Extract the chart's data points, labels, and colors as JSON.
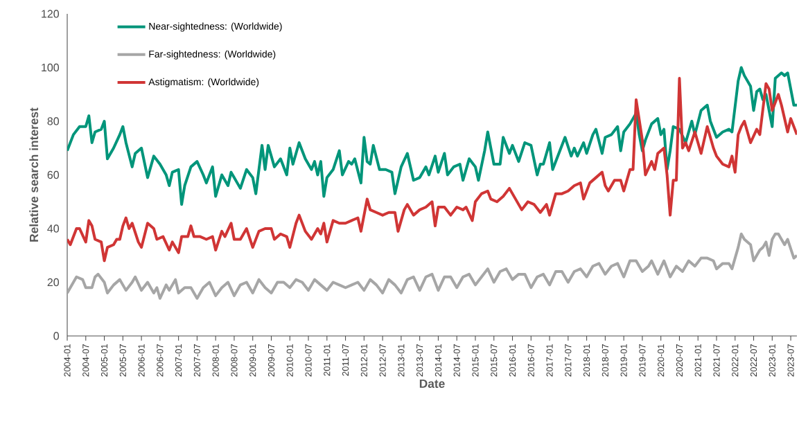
{
  "chart_data": {
    "type": "line",
    "xlabel": "Date",
    "ylabel": "Relative search interest",
    "xlim": [
      "2004-01",
      "2023-09"
    ],
    "ylim": [
      0,
      120
    ],
    "yticks": [
      0,
      20,
      40,
      60,
      80,
      100,
      120
    ],
    "xticks": [
      "2004-01",
      "2004-07",
      "2005-01",
      "2005-07",
      "2006-01",
      "2006-07",
      "2007-01",
      "2007-07",
      "2008-01",
      "2008-07",
      "2009-01",
      "2009-07",
      "2010-01",
      "2010-07",
      "2011-01",
      "2011-07",
      "2012-01",
      "2012-07",
      "2013-01",
      "2013-07",
      "2014-01",
      "2014-07",
      "2015-01",
      "2015-07",
      "2016-01",
      "2016-07",
      "2017-01",
      "2017-07",
      "2018-01",
      "2018-07",
      "2019-01",
      "2019-07",
      "2020-01",
      "2020-07",
      "2021-01",
      "2021-07",
      "2022-01",
      "2022-07",
      "2023-01",
      "2023-07"
    ],
    "grid": false,
    "legend": "top left",
    "marker": "none",
    "line_style": "solid",
    "series": [
      {
        "name": "Near-sightedness: (Worldwide)",
        "color": "#00957a",
        "x": [
          "2004-01",
          "2004-03",
          "2004-05",
          "2004-07",
          "2004-08",
          "2004-09",
          "2004-10",
          "2004-12",
          "2005-01",
          "2005-02",
          "2005-04",
          "2005-06",
          "2005-07",
          "2005-08",
          "2005-10",
          "2005-11",
          "2006-01",
          "2006-03",
          "2006-05",
          "2006-07",
          "2006-09",
          "2006-10",
          "2006-11",
          "2007-01",
          "2007-02",
          "2007-03",
          "2007-05",
          "2007-07",
          "2007-09",
          "2007-10",
          "2007-12",
          "2008-01",
          "2008-03",
          "2008-05",
          "2008-06",
          "2008-08",
          "2008-09",
          "2008-11",
          "2009-01",
          "2009-02",
          "2009-04",
          "2009-05",
          "2009-06",
          "2009-08",
          "2009-10",
          "2009-12",
          "2010-01",
          "2010-02",
          "2010-04",
          "2010-06",
          "2010-08",
          "2010-09",
          "2010-10",
          "2010-11",
          "2010-12",
          "2011-01",
          "2011-03",
          "2011-05",
          "2011-06",
          "2011-08",
          "2011-09",
          "2011-10",
          "2011-12",
          "2012-01",
          "2012-02",
          "2012-03",
          "2012-04",
          "2012-06",
          "2012-08",
          "2012-10",
          "2012-11",
          "2013-01",
          "2013-03",
          "2013-05",
          "2013-07",
          "2013-09",
          "2013-10",
          "2013-12",
          "2014-01",
          "2014-03",
          "2014-04",
          "2014-06",
          "2014-08",
          "2014-09",
          "2014-11",
          "2015-01",
          "2015-02",
          "2015-04",
          "2015-05",
          "2015-06",
          "2015-07",
          "2015-09",
          "2015-10",
          "2015-12",
          "2016-01",
          "2016-03",
          "2016-05",
          "2016-07",
          "2016-09",
          "2016-10",
          "2016-11",
          "2017-01",
          "2017-02",
          "2017-04",
          "2017-06",
          "2017-08",
          "2017-09",
          "2017-10",
          "2017-12",
          "2018-01",
          "2018-03",
          "2018-04",
          "2018-06",
          "2018-07",
          "2018-09",
          "2018-11",
          "2018-12",
          "2019-01",
          "2019-03",
          "2019-05",
          "2019-06",
          "2019-07",
          "2019-08",
          "2019-10",
          "2019-12",
          "2020-01",
          "2020-02",
          "2020-03",
          "2020-04",
          "2020-05",
          "2020-07",
          "2020-09",
          "2020-11",
          "2020-12",
          "2021-02",
          "2021-04",
          "2021-05",
          "2021-07",
          "2021-09",
          "2021-11",
          "2021-12",
          "2022-02",
          "2022-03",
          "2022-04",
          "2022-06",
          "2022-07",
          "2022-08",
          "2022-09",
          "2022-10",
          "2022-11",
          "2023-01",
          "2023-02",
          "2023-04",
          "2023-05",
          "2023-06",
          "2023-08",
          "2023-09"
        ],
        "values": [
          69,
          75,
          78,
          78,
          82,
          72,
          76,
          77,
          80,
          66,
          70,
          75,
          78,
          72,
          63,
          68,
          70,
          59,
          67,
          64,
          60,
          56,
          61,
          62,
          49,
          56,
          63,
          65,
          60,
          57,
          63,
          52,
          60,
          56,
          61,
          57,
          55,
          62,
          59,
          53,
          71,
          62,
          71,
          63,
          66,
          60,
          70,
          64,
          72,
          66,
          62,
          65,
          60,
          65,
          52,
          59,
          62,
          69,
          60,
          65,
          64,
          66,
          57,
          74,
          65,
          64,
          71,
          62,
          62,
          61,
          53,
          63,
          68,
          58,
          59,
          63,
          60,
          67,
          61,
          68,
          60,
          63,
          64,
          58,
          66,
          63,
          58,
          69,
          76,
          70,
          64,
          64,
          74,
          68,
          71,
          65,
          72,
          71,
          60,
          64,
          64,
          72,
          62,
          68,
          74,
          67,
          70,
          67,
          72,
          68,
          75,
          77,
          68,
          74,
          75,
          78,
          69,
          76,
          79,
          83,
          75,
          69,
          73,
          79,
          81,
          75,
          77,
          62,
          69,
          78,
          77,
          72,
          80,
          75,
          84,
          86,
          80,
          74,
          76,
          77,
          76,
          95,
          100,
          97,
          93,
          84,
          91,
          92,
          88,
          90,
          78,
          96,
          98,
          97,
          98,
          86,
          86
        ]
      },
      {
        "name": "Far-sightedness: (Worldwide)",
        "color": "#a6a6a6",
        "x": [
          "2004-01",
          "2004-03",
          "2004-04",
          "2004-06",
          "2004-07",
          "2004-09",
          "2004-10",
          "2004-11",
          "2005-01",
          "2005-02",
          "2005-04",
          "2005-06",
          "2005-08",
          "2005-10",
          "2005-11",
          "2006-01",
          "2006-03",
          "2006-05",
          "2006-06",
          "2006-07",
          "2006-09",
          "2006-10",
          "2006-12",
          "2007-01",
          "2007-03",
          "2007-05",
          "2007-07",
          "2007-09",
          "2007-11",
          "2008-01",
          "2008-03",
          "2008-05",
          "2008-07",
          "2008-09",
          "2008-11",
          "2009-01",
          "2009-03",
          "2009-05",
          "2009-07",
          "2009-09",
          "2009-11",
          "2010-01",
          "2010-03",
          "2010-05",
          "2010-07",
          "2010-09",
          "2010-11",
          "2011-01",
          "2011-03",
          "2011-05",
          "2011-07",
          "2011-09",
          "2011-11",
          "2012-01",
          "2012-03",
          "2012-05",
          "2012-07",
          "2012-09",
          "2012-11",
          "2013-01",
          "2013-03",
          "2013-05",
          "2013-07",
          "2013-09",
          "2013-11",
          "2014-01",
          "2014-03",
          "2014-05",
          "2014-07",
          "2014-09",
          "2014-11",
          "2015-01",
          "2015-03",
          "2015-05",
          "2015-07",
          "2015-09",
          "2015-11",
          "2016-01",
          "2016-03",
          "2016-05",
          "2016-07",
          "2016-09",
          "2016-11",
          "2017-01",
          "2017-03",
          "2017-05",
          "2017-07",
          "2017-09",
          "2017-11",
          "2018-01",
          "2018-03",
          "2018-05",
          "2018-07",
          "2018-09",
          "2018-11",
          "2019-01",
          "2019-03",
          "2019-05",
          "2019-07",
          "2019-09",
          "2019-10",
          "2019-12",
          "2020-02",
          "2020-04",
          "2020-06",
          "2020-08",
          "2020-10",
          "2020-12",
          "2021-02",
          "2021-04",
          "2021-06",
          "2021-07",
          "2021-09",
          "2021-11",
          "2021-12",
          "2022-02",
          "2022-03",
          "2022-04",
          "2022-06",
          "2022-07",
          "2022-09",
          "2022-10",
          "2022-11",
          "2022-12",
          "2023-01",
          "2023-02",
          "2023-03",
          "2023-05",
          "2023-06",
          "2023-08",
          "2023-09"
        ],
        "values": [
          16,
          20,
          22,
          21,
          18,
          18,
          22,
          23,
          20,
          16,
          19,
          21,
          17,
          20,
          22,
          17,
          20,
          16,
          18,
          14,
          19,
          17,
          21,
          16,
          18,
          18,
          14,
          18,
          20,
          15,
          18,
          20,
          15,
          19,
          20,
          16,
          21,
          18,
          16,
          20,
          20,
          18,
          21,
          20,
          17,
          21,
          19,
          17,
          20,
          19,
          18,
          19,
          20,
          17,
          21,
          19,
          16,
          21,
          19,
          16,
          21,
          22,
          17,
          22,
          23,
          17,
          22,
          22,
          18,
          22,
          23,
          19,
          22,
          25,
          20,
          24,
          25,
          21,
          23,
          23,
          18,
          22,
          23,
          19,
          24,
          24,
          20,
          24,
          25,
          22,
          26,
          27,
          23,
          26,
          27,
          22,
          28,
          28,
          24,
          26,
          28,
          23,
          28,
          22,
          26,
          24,
          28,
          26,
          29,
          29,
          28,
          25,
          27,
          27,
          25,
          33,
          38,
          36,
          34,
          28,
          32,
          33,
          35,
          30,
          36,
          38,
          38,
          34,
          36,
          29,
          30
        ]
      },
      {
        "name": "Astigmatism: (Worldwide)",
        "color": "#d03535",
        "x": [
          "2004-01",
          "2004-02",
          "2004-04",
          "2004-05",
          "2004-07",
          "2004-08",
          "2004-09",
          "2004-10",
          "2004-12",
          "2005-01",
          "2005-02",
          "2005-04",
          "2005-05",
          "2005-06",
          "2005-07",
          "2005-08",
          "2005-09",
          "2005-10",
          "2005-12",
          "2006-01",
          "2006-03",
          "2006-05",
          "2006-06",
          "2006-08",
          "2006-10",
          "2006-11",
          "2007-01",
          "2007-02",
          "2007-04",
          "2007-05",
          "2007-06",
          "2007-08",
          "2007-10",
          "2007-12",
          "2008-01",
          "2008-03",
          "2008-04",
          "2008-06",
          "2008-07",
          "2008-09",
          "2008-11",
          "2009-01",
          "2009-03",
          "2009-05",
          "2009-07",
          "2009-08",
          "2009-10",
          "2009-12",
          "2010-01",
          "2010-03",
          "2010-04",
          "2010-06",
          "2010-08",
          "2010-10",
          "2010-11",
          "2010-12",
          "2011-01",
          "2011-03",
          "2011-05",
          "2011-07",
          "2011-09",
          "2011-11",
          "2011-12",
          "2012-02",
          "2012-03",
          "2012-05",
          "2012-07",
          "2012-09",
          "2012-11",
          "2012-12",
          "2013-02",
          "2013-03",
          "2013-05",
          "2013-07",
          "2013-09",
          "2013-11",
          "2013-12",
          "2014-01",
          "2014-03",
          "2014-05",
          "2014-07",
          "2014-09",
          "2014-10",
          "2014-12",
          "2015-01",
          "2015-03",
          "2015-05",
          "2015-06",
          "2015-08",
          "2015-10",
          "2015-12",
          "2016-02",
          "2016-04",
          "2016-06",
          "2016-08",
          "2016-10",
          "2016-12",
          "2017-01",
          "2017-03",
          "2017-05",
          "2017-07",
          "2017-09",
          "2017-11",
          "2017-12",
          "2018-02",
          "2018-04",
          "2018-06",
          "2018-07",
          "2018-08",
          "2018-10",
          "2018-12",
          "2019-01",
          "2019-03",
          "2019-04",
          "2019-05",
          "2019-07",
          "2019-08",
          "2019-10",
          "2019-11",
          "2019-12",
          "2020-02",
          "2020-03",
          "2020-04",
          "2020-05",
          "2020-06",
          "2020-07",
          "2020-08",
          "2020-09",
          "2020-10",
          "2020-12",
          "2021-02",
          "2021-03",
          "2021-04",
          "2021-06",
          "2021-07",
          "2021-09",
          "2021-11",
          "2021-12",
          "2022-01",
          "2022-02",
          "2022-03",
          "2022-04",
          "2022-06",
          "2022-08",
          "2022-09",
          "2022-11",
          "2022-12",
          "2023-01",
          "2023-03",
          "2023-04",
          "2023-06",
          "2023-07",
          "2023-09"
        ],
        "values": [
          36,
          34,
          40,
          40,
          35,
          43,
          41,
          36,
          35,
          28,
          33,
          34,
          36,
          36,
          41,
          44,
          40,
          42,
          35,
          33,
          42,
          40,
          36,
          37,
          32,
          35,
          31,
          37,
          37,
          41,
          37,
          37,
          36,
          37,
          32,
          39,
          37,
          42,
          36,
          36,
          40,
          33,
          39,
          40,
          40,
          36,
          38,
          37,
          33,
          42,
          45,
          39,
          36,
          40,
          38,
          42,
          35,
          43,
          42,
          42,
          43,
          44,
          39,
          51,
          47,
          46,
          45,
          46,
          46,
          39,
          47,
          49,
          45,
          47,
          48,
          50,
          41,
          48,
          48,
          45,
          48,
          47,
          48,
          43,
          50,
          53,
          54,
          51,
          50,
          52,
          55,
          51,
          47,
          50,
          49,
          46,
          49,
          45,
          53,
          53,
          54,
          56,
          57,
          51,
          57,
          59,
          61,
          56,
          54,
          58,
          58,
          54,
          62,
          62,
          88,
          73,
          60,
          65,
          62,
          68,
          70,
          60,
          45,
          58,
          58,
          96,
          70,
          72,
          69,
          76,
          68,
          73,
          78,
          70,
          67,
          64,
          63,
          67,
          61,
          75,
          78,
          80,
          72,
          77,
          75,
          94,
          92,
          84,
          90,
          86,
          76,
          81,
          75
        ]
      }
    ]
  }
}
